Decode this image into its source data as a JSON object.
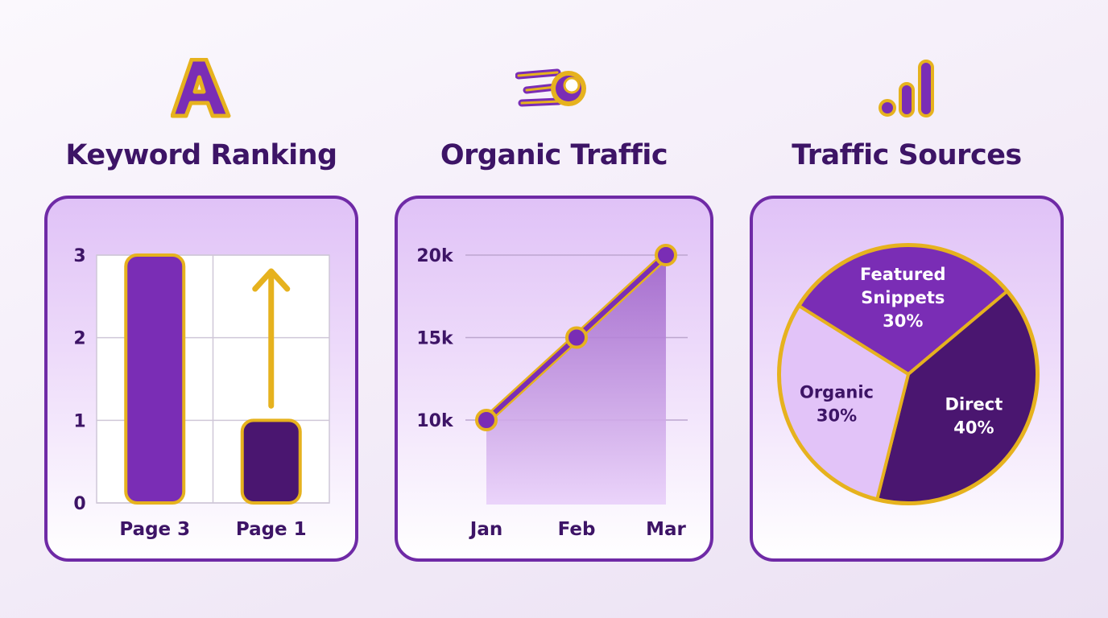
{
  "colors": {
    "gold": "#e6b21e",
    "purple_dark": "#3d1466",
    "purple_mid": "#7a2db5",
    "purple_deep": "#4a1670",
    "lavender": "#e2c3f8",
    "border": "#6f2aa6"
  },
  "icons": {
    "keyword": "letter-a-logo-icon",
    "traffic": "rocket-fireball-icon",
    "sources": "bar-signal-icon"
  },
  "panels": [
    {
      "title": "Keyword Ranking"
    },
    {
      "title": "Organic Traffic"
    },
    {
      "title": "Traffic Sources"
    }
  ],
  "chart_data": [
    {
      "type": "bar",
      "title": "Keyword Ranking",
      "categories": [
        "Page 3",
        "Page 1"
      ],
      "values": [
        3,
        1
      ],
      "ylim": [
        0,
        3
      ],
      "yticks": [
        "0",
        "1",
        "2",
        "3"
      ],
      "grid": true,
      "annotation": "up-arrow"
    },
    {
      "type": "area",
      "title": "Organic Traffic",
      "categories": [
        "Jan",
        "Feb",
        "Mar"
      ],
      "values": [
        10000,
        15000,
        20000
      ],
      "ylim": [
        10000,
        20000
      ],
      "yticks": [
        "10k",
        "15k",
        "20k"
      ],
      "grid": true
    },
    {
      "type": "pie",
      "title": "Traffic Sources",
      "slices": [
        {
          "label": "Featured",
          "label2": "Snippets",
          "pct_label": "30%",
          "value": 30
        },
        {
          "label": "Direct",
          "label2": "",
          "pct_label": "40%",
          "value": 40
        },
        {
          "label": "Organic",
          "label2": "",
          "pct_label": "30%",
          "value": 30
        }
      ]
    }
  ]
}
